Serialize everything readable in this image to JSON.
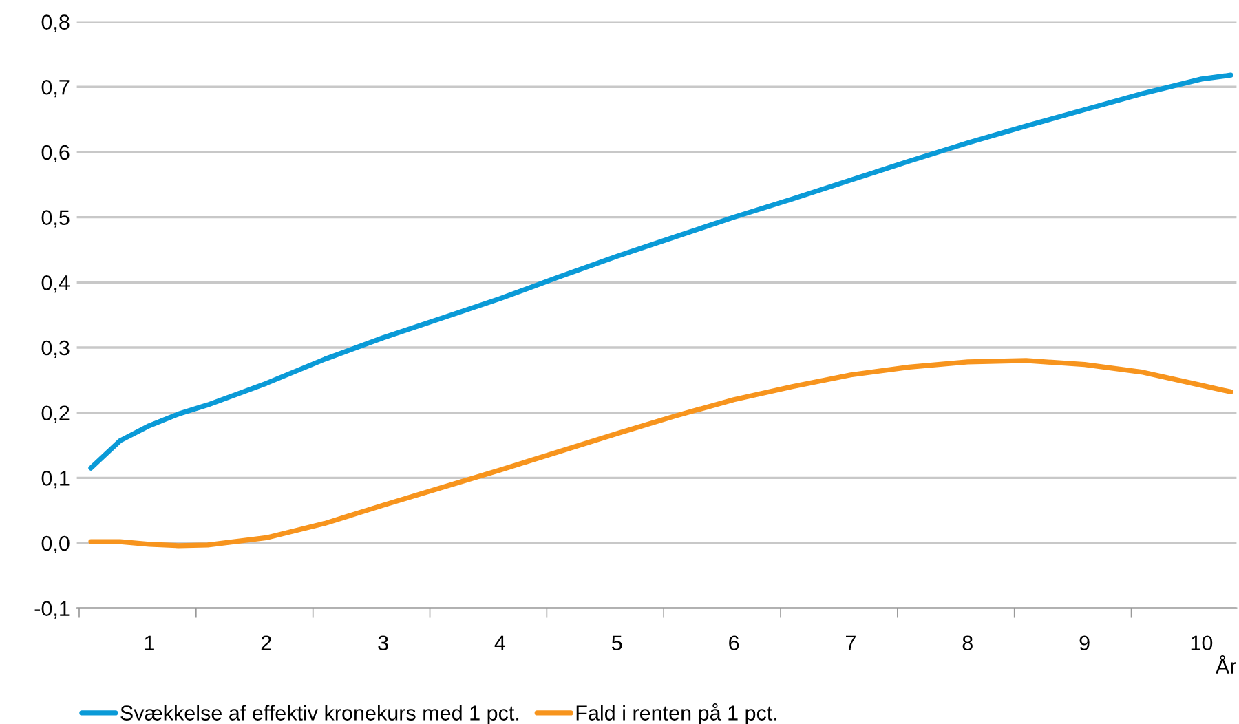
{
  "chart_data": {
    "type": "line",
    "xlabel": "År",
    "series": [
      {
        "name": "Svækkelse af effektiv kronekurs med 1 pct.",
        "color": "#0a9ad7",
        "x": [
          0.5,
          0.75,
          1,
          1.25,
          1.5,
          2,
          2.5,
          3,
          3.5,
          4,
          4.5,
          5,
          5.5,
          6,
          6.5,
          7,
          7.5,
          8,
          8.5,
          9,
          9.5,
          10,
          10.25
        ],
        "values": [
          0.115,
          0.157,
          0.18,
          0.198,
          0.212,
          0.245,
          0.282,
          0.315,
          0.345,
          0.375,
          0.408,
          0.44,
          0.47,
          0.5,
          0.528,
          0.557,
          0.586,
          0.614,
          0.64,
          0.665,
          0.69,
          0.712,
          0.718
        ]
      },
      {
        "name": "Fald i renten på 1 pct.",
        "color": "#f7941d",
        "x": [
          0.5,
          0.75,
          1,
          1.25,
          1.5,
          2,
          2.5,
          3,
          3.5,
          4,
          4.5,
          5,
          5.5,
          6,
          6.5,
          7,
          7.5,
          8,
          8.5,
          9,
          9.5,
          10,
          10.25
        ],
        "values": [
          0.002,
          0.002,
          -0.002,
          -0.004,
          -0.003,
          0.008,
          0.03,
          0.058,
          0.085,
          0.112,
          0.14,
          0.168,
          0.195,
          0.22,
          0.24,
          0.258,
          0.27,
          0.278,
          0.28,
          0.274,
          0.262,
          0.242,
          0.232
        ]
      }
    ],
    "xlim": [
      0.38,
      10.3
    ],
    "xticks": [
      {
        "value": 1,
        "label": "1"
      },
      {
        "value": 2,
        "label": "2"
      },
      {
        "value": 3,
        "label": "3"
      },
      {
        "value": 4,
        "label": "4"
      },
      {
        "value": 5,
        "label": "5"
      },
      {
        "value": 6,
        "label": "6"
      },
      {
        "value": 7,
        "label": "7"
      },
      {
        "value": 8,
        "label": "8"
      },
      {
        "value": 9,
        "label": "9"
      },
      {
        "value": 10,
        "label": "10"
      },
      {
        "value": 0.4,
        "label": null
      },
      {
        "value": 1.4,
        "label": null
      },
      {
        "value": 2.4,
        "label": null
      },
      {
        "value": 3.4,
        "label": null
      },
      {
        "value": 4.4,
        "label": null
      },
      {
        "value": 5.4,
        "label": null
      },
      {
        "value": 6.4,
        "label": null
      },
      {
        "value": 7.4,
        "label": null
      },
      {
        "value": 8.4,
        "label": null
      },
      {
        "value": 9.4,
        "label": null
      }
    ],
    "ylim": [
      -0.1,
      0.8
    ],
    "yticks": [
      {
        "value": -0.1,
        "label": "-0,1"
      },
      {
        "value": 0,
        "label": "0,0"
      },
      {
        "value": 0.1,
        "label": "0,1"
      },
      {
        "value": 0.2,
        "label": "0,2"
      },
      {
        "value": 0.3,
        "label": "0,3"
      },
      {
        "value": 0.4,
        "label": "0,4"
      },
      {
        "value": 0.5,
        "label": "0,5"
      },
      {
        "value": 0.6,
        "label": "0,6"
      },
      {
        "value": 0.7,
        "label": "0,7"
      },
      {
        "value": 0.8,
        "label": "0,8"
      }
    ],
    "grid": "y",
    "legend": "bottom left",
    "line_style": "solid",
    "marker": "none"
  }
}
